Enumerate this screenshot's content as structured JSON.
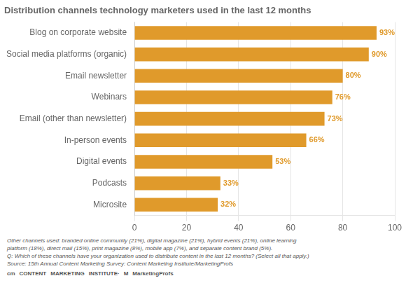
{
  "chart_data": {
    "type": "bar",
    "orientation": "horizontal",
    "title": "Distribution channels technology marketers used in the last 12 months",
    "categories": [
      "Blog on corporate website",
      "Social media platforms (organic)",
      "Email newsletter",
      "Webinars",
      "Email (other than newsletter)",
      "In-person events",
      "Digital events",
      "Podcasts",
      "Microsite"
    ],
    "values": [
      93,
      90,
      80,
      76,
      73,
      66,
      53,
      33,
      32
    ],
    "value_labels": [
      "93%",
      "90%",
      "80%",
      "76%",
      "73%",
      "66%",
      "53%",
      "33%",
      "32%"
    ],
    "data_labels": true,
    "color": "#E09A2B",
    "xlim": [
      0,
      100
    ],
    "xticks": [
      0,
      20,
      40,
      60,
      80,
      100
    ],
    "grid": true,
    "annotations": [
      [
        "Other channels used: branded online community (21%), digital magazine (21%), hybrid events (21%), online learning"
      ],
      [
        "platform (18%), direct mail (15%), print magazine (8%), mobile app (7%), and separate content brand (5%)."
      ],
      [
        "Q: Which of these channels have your organization used to distribute content in the last 12 months? (Select all that apply.)"
      ],
      [
        "Source: 15th Annual Content Marketing Survey: Content Marketing Institute/MarketingProfs"
      ],
      [
        "cm",
        "CONTENT",
        "MARKETING",
        "INSTITUTE·",
        "M",
        "MarketingProfs"
      ]
    ]
  }
}
